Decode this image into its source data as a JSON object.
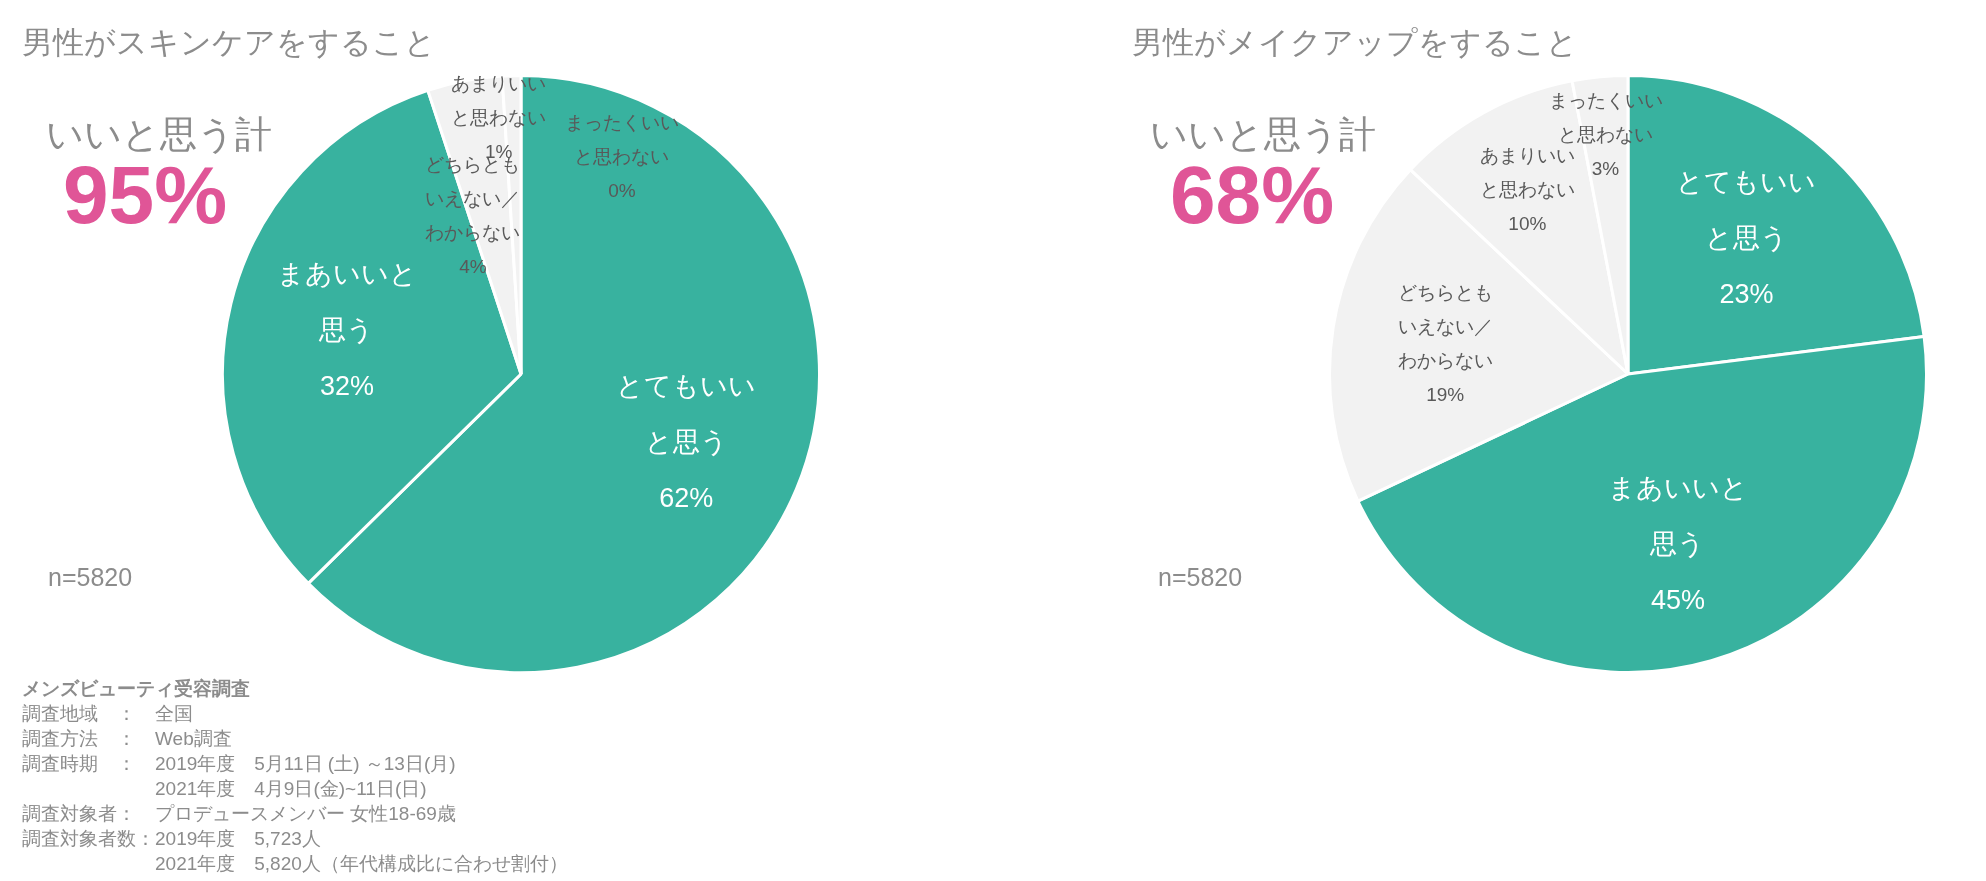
{
  "chart_data": [
    {
      "type": "pie",
      "title": "男性がスキンケアをすること",
      "categories": [
        "とてもいいと思う",
        "まあいいと思う",
        "どちらともいえない／わからない",
        "あまりいいと思わない",
        "まったくいいと思わない"
      ],
      "values": [
        62,
        32,
        4,
        1,
        0
      ],
      "value_labels": [
        "62%",
        "32%",
        "4%",
        "1%",
        "0%"
      ],
      "colors": [
        "#38b29f",
        "#38b29f",
        "#f2f2f2",
        "#f2f2f2",
        "#f2f2f2"
      ],
      "annotations": [
        "いいと思う計",
        "95%",
        "n=5820",
        "メンズビューティ受容調査",
        "調査地域　：　全国",
        "調査方法　：　Web調査",
        "調査時期　：　2019年度　5月11日 (土) ～13日(月)",
        "　　　　　　　2021年度　4月9日(金)~11日(日)",
        "調査対象者：　プロデュースメンバー 女性18-69歳",
        "調査対象者数：2019年度　5,723人",
        "　　　　　　　2021年度　5,820人（年代構成比に合わせ割付）"
      ]
    },
    {
      "type": "pie",
      "title": "男性がメイクアップをすること",
      "categories": [
        "とてもいいと思う",
        "まあいいと思う",
        "どちらともいえない／わからない",
        "あまりいいと思わない",
        "まったくいいと思わない"
      ],
      "values": [
        23,
        45,
        19,
        10,
        3
      ],
      "value_labels": [
        "23%",
        "45%",
        "19%",
        "10%",
        "3%"
      ],
      "colors": [
        "#38b29f",
        "#38b29f",
        "#f2f2f2",
        "#f2f2f2",
        "#f2f2f2"
      ],
      "annotations": [
        "いいと思う計",
        "68%",
        "n=5820"
      ]
    }
  ]
}
